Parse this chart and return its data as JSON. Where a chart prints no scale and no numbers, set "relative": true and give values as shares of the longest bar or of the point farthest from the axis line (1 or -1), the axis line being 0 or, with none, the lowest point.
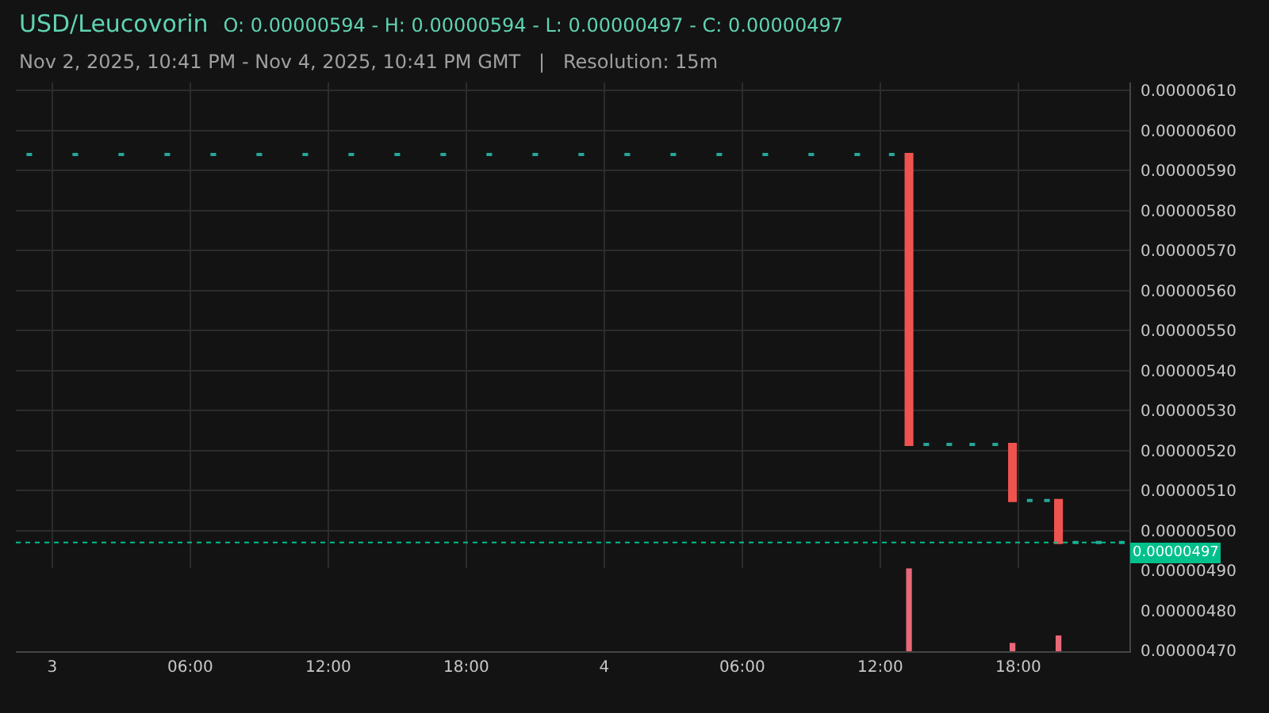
{
  "chart_data": [
    {
      "type": "candlestick",
      "title": "USD/Leucovorin",
      "subtitle": "Nov 2, 2025, 10:41 PM - Nov 4, 2025, 10:41 PM GMT   |   Resolution: 15m",
      "annotations": [
        "O: 0.00000594 - H: 0.00000594 - L: 0.00000497 - C: 0.00000497"
      ],
      "x": [
        "2025-11-02T23:00",
        "2025-11-03T01:00",
        "2025-11-03T03:00",
        "2025-11-03T05:00",
        "2025-11-03T07:00",
        "2025-11-03T09:00",
        "2025-11-03T11:00",
        "2025-11-03T13:00",
        "2025-11-03T15:00",
        "2025-11-03T17:00",
        "2025-11-03T19:00",
        "2025-11-03T21:00",
        "2025-11-03T23:00",
        "2025-11-04T01:00",
        "2025-11-04T03:00",
        "2025-11-04T05:00",
        "2025-11-04T07:00",
        "2025-11-04T09:00",
        "2025-11-04T11:00",
        "2025-11-04T12:30",
        "2025-11-04T13:15",
        "2025-11-04T14:00",
        "2025-11-04T15:00",
        "2025-11-04T16:00",
        "2025-11-04T17:00",
        "2025-11-04T17:45",
        "2025-11-04T18:30",
        "2025-11-04T19:15",
        "2025-11-04T19:45",
        "2025-11-04T20:30",
        "2025-11-04T21:30",
        "2025-11-04T22:30"
      ],
      "ohlc": [
        [
          5.94e-06,
          5.94e-06,
          5.94e-06,
          5.94e-06
        ],
        [
          5.94e-06,
          5.94e-06,
          5.94e-06,
          5.94e-06
        ],
        [
          5.94e-06,
          5.94e-06,
          5.94e-06,
          5.94e-06
        ],
        [
          5.94e-06,
          5.94e-06,
          5.94e-06,
          5.94e-06
        ],
        [
          5.94e-06,
          5.94e-06,
          5.94e-06,
          5.94e-06
        ],
        [
          5.94e-06,
          5.94e-06,
          5.94e-06,
          5.94e-06
        ],
        [
          5.94e-06,
          5.94e-06,
          5.94e-06,
          5.94e-06
        ],
        [
          5.94e-06,
          5.94e-06,
          5.94e-06,
          5.94e-06
        ],
        [
          5.94e-06,
          5.94e-06,
          5.94e-06,
          5.94e-06
        ],
        [
          5.94e-06,
          5.94e-06,
          5.94e-06,
          5.94e-06
        ],
        [
          5.94e-06,
          5.94e-06,
          5.94e-06,
          5.94e-06
        ],
        [
          5.94e-06,
          5.94e-06,
          5.94e-06,
          5.94e-06
        ],
        [
          5.94e-06,
          5.94e-06,
          5.94e-06,
          5.94e-06
        ],
        [
          5.94e-06,
          5.94e-06,
          5.94e-06,
          5.94e-06
        ],
        [
          5.94e-06,
          5.94e-06,
          5.94e-06,
          5.94e-06
        ],
        [
          5.94e-06,
          5.94e-06,
          5.94e-06,
          5.94e-06
        ],
        [
          5.94e-06,
          5.94e-06,
          5.94e-06,
          5.94e-06
        ],
        [
          5.94e-06,
          5.94e-06,
          5.94e-06,
          5.94e-06
        ],
        [
          5.94e-06,
          5.94e-06,
          5.94e-06,
          5.94e-06
        ],
        [
          5.94e-06,
          5.94e-06,
          5.94e-06,
          5.94e-06
        ],
        [
          5.94e-06,
          5.94e-06,
          5.215e-06,
          5.215e-06
        ],
        [
          5.215e-06,
          5.215e-06,
          5.215e-06,
          5.215e-06
        ],
        [
          5.215e-06,
          5.215e-06,
          5.215e-06,
          5.215e-06
        ],
        [
          5.215e-06,
          5.215e-06,
          5.215e-06,
          5.215e-06
        ],
        [
          5.215e-06,
          5.215e-06,
          5.215e-06,
          5.215e-06
        ],
        [
          5.215e-06,
          5.215e-06,
          5.075e-06,
          5.075e-06
        ],
        [
          5.075e-06,
          5.075e-06,
          5.075e-06,
          5.075e-06
        ],
        [
          5.075e-06,
          5.075e-06,
          5.075e-06,
          5.075e-06
        ],
        [
          5.075e-06,
          5.075e-06,
          4.97e-06,
          4.97e-06
        ],
        [
          4.97e-06,
          4.97e-06,
          4.97e-06,
          4.97e-06
        ],
        [
          4.97e-06,
          4.97e-06,
          4.97e-06,
          4.97e-06
        ],
        [
          4.97e-06,
          4.97e-06,
          4.97e-06,
          4.97e-06
        ]
      ],
      "colors": [
        "#26a69a",
        "#26a69a",
        "#26a69a",
        "#26a69a",
        "#26a69a",
        "#26a69a",
        "#26a69a",
        "#26a69a",
        "#26a69a",
        "#26a69a",
        "#26a69a",
        "#26a69a",
        "#26a69a",
        "#26a69a",
        "#26a69a",
        "#26a69a",
        "#26a69a",
        "#26a69a",
        "#26a69a",
        "#26a69a",
        "#ef5350",
        "#26a69a",
        "#26a69a",
        "#26a69a",
        "#26a69a",
        "#ef5350",
        "#26a69a",
        "#26a69a",
        "#ef5350",
        "#26a69a",
        "#26a69a",
        "#26a69a"
      ],
      "xlim": [
        "2025-11-02T22:25",
        "2025-11-04T22:50"
      ],
      "xticks": [
        {
          "value": "2025-11-03T00:00",
          "label": "3"
        },
        {
          "value": "2025-11-03T06:00",
          "label": "06:00"
        },
        {
          "value": "2025-11-03T12:00",
          "label": "12:00"
        },
        {
          "value": "2025-11-03T18:00",
          "label": "18:00"
        },
        {
          "value": "2025-11-04T00:00",
          "label": "4"
        },
        {
          "value": "2025-11-04T06:00",
          "label": "06:00"
        },
        {
          "value": "2025-11-04T12:00",
          "label": "12:00"
        },
        {
          "value": "2025-11-04T18:00",
          "label": "18:00"
        }
      ],
      "ylim": [
        4.698e-06,
        6.12e-06
      ],
      "yticks": [
        {
          "value": 4.7e-06,
          "label": "0.00000470"
        },
        {
          "value": 4.8e-06,
          "label": "0.00000480"
        },
        {
          "value": 4.9e-06,
          "label": "0.00000490"
        },
        {
          "value": 5e-06,
          "label": "0.00000500"
        },
        {
          "value": 5.1e-06,
          "label": "0.00000510"
        },
        {
          "value": 5.2e-06,
          "label": "0.00000520"
        },
        {
          "value": 5.3e-06,
          "label": "0.00000530"
        },
        {
          "value": 5.4e-06,
          "label": "0.00000540"
        },
        {
          "value": 5.5e-06,
          "label": "0.00000550"
        },
        {
          "value": 5.6e-06,
          "label": "0.00000560"
        },
        {
          "value": 5.7e-06,
          "label": "0.00000570"
        },
        {
          "value": 5.8e-06,
          "label": "0.00000580"
        },
        {
          "value": 5.9e-06,
          "label": "0.00000590"
        },
        {
          "value": 6e-06,
          "label": "0.00000600"
        },
        {
          "value": 6.1e-06,
          "label": "0.00000610"
        }
      ],
      "ref_lines": [
        {
          "axis": "y",
          "value": 4.97e-06,
          "label": "0.00000497",
          "color": "#00c08b",
          "line_style": "dotted"
        }
      ],
      "grid": true
    },
    {
      "type": "bar",
      "relative": true,
      "x": [
        "2025-11-04T13:15",
        "2025-11-04T17:45",
        "2025-11-04T19:45"
      ],
      "values": [
        1,
        0.1,
        0.19
      ],
      "color": "#e8687a",
      "xlim": [
        "2025-11-02T22:25",
        "2025-11-04T22:50"
      ],
      "tick_labels": false
    }
  ]
}
